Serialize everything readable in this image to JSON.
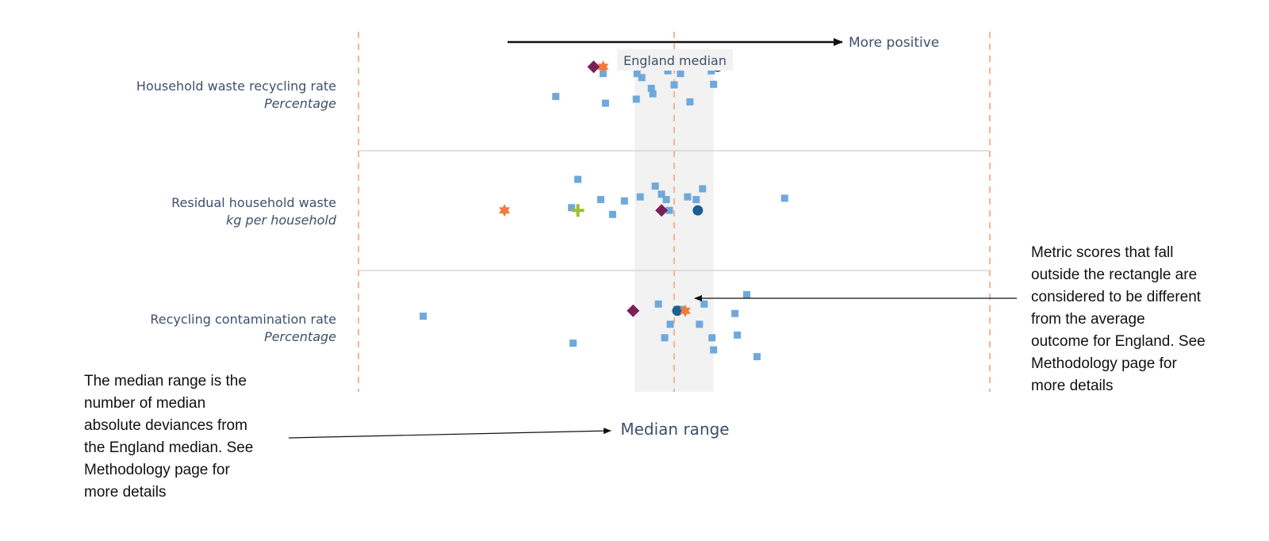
{
  "chart_data": {
    "type": "scatter",
    "x_axis_label": "Median range",
    "direction_label": "More positive",
    "median_label": "England median",
    "x_range": [
      -4,
      4
    ],
    "median_band": [
      -0.5,
      0.5
    ],
    "marker_colors": {
      "background": "#6fa8dc",
      "circle": "#1c5f91",
      "star": "#f07a3c",
      "diamond": "#7b1f5a",
      "plus": "#9cbf2a",
      "guide": "#f4a27a",
      "band": "#f2f2f2",
      "separator": "#d6d6d6"
    },
    "rows": [
      {
        "title": "Household waste recycling rate",
        "unit": "Percentage",
        "background_points": [
          {
            "x": -0.87,
            "y": -0.65
          },
          {
            "x": -0.9,
            "y": 0.45
          },
          {
            "x": -0.47,
            "y": 0.45
          },
          {
            "x": -0.41,
            "y": 0.3
          },
          {
            "x": -0.29,
            "y": -0.1
          },
          {
            "x": -0.27,
            "y": -0.3
          },
          {
            "x": -0.48,
            "y": -0.5
          },
          {
            "x": 0.0,
            "y": 0.03
          },
          {
            "x": -0.08,
            "y": 0.55
          },
          {
            "x": 0.08,
            "y": 0.45
          },
          {
            "x": 0.2,
            "y": -0.6
          },
          {
            "x": 0.47,
            "y": 0.55
          },
          {
            "x": 0.5,
            "y": 0.05
          },
          {
            "x": -1.5,
            "y": -0.4
          }
        ],
        "markers": [
          {
            "shape": "diamond",
            "x": -1.02,
            "y": 0.7
          },
          {
            "shape": "star",
            "x": -0.9,
            "y": 0.7
          },
          {
            "shape": "circle",
            "x": 0.55,
            "y": 0.7
          }
        ]
      },
      {
        "title": "Residual household waste",
        "unit": "kg per household",
        "background_points": [
          {
            "x": -1.22,
            "y": 0.85
          },
          {
            "x": -1.3,
            "y": -0.2
          },
          {
            "x": -0.93,
            "y": 0.1
          },
          {
            "x": -0.78,
            "y": -0.45
          },
          {
            "x": -0.63,
            "y": 0.05
          },
          {
            "x": -0.43,
            "y": 0.2
          },
          {
            "x": -0.24,
            "y": 0.6
          },
          {
            "x": -0.16,
            "y": 0.3
          },
          {
            "x": -0.1,
            "y": 0.1
          },
          {
            "x": 0.17,
            "y": 0.2
          },
          {
            "x": 0.28,
            "y": 0.1
          },
          {
            "x": 0.36,
            "y": 0.5
          },
          {
            "x": -0.06,
            "y": -0.3
          },
          {
            "x": 1.4,
            "y": 0.15
          }
        ],
        "markers": [
          {
            "shape": "star",
            "x": -2.15,
            "y": -0.3
          },
          {
            "shape": "plus",
            "x": -1.22,
            "y": -0.3
          },
          {
            "shape": "diamond",
            "x": -0.16,
            "y": -0.3
          },
          {
            "shape": "circle",
            "x": 0.3,
            "y": -0.3
          }
        ]
      },
      {
        "title": "Recycling contamination rate",
        "unit": "Percentage",
        "background_points": [
          {
            "x": -3.18,
            "y": 0.1
          },
          {
            "x": -1.28,
            "y": -0.9
          },
          {
            "x": -0.2,
            "y": 0.55
          },
          {
            "x": -0.05,
            "y": -0.2
          },
          {
            "x": -0.12,
            "y": -0.7
          },
          {
            "x": 0.08,
            "y": 0.35
          },
          {
            "x": 0.38,
            "y": 0.55
          },
          {
            "x": 0.32,
            "y": -0.2
          },
          {
            "x": 0.48,
            "y": -0.7
          },
          {
            "x": 0.77,
            "y": 0.2
          },
          {
            "x": 0.92,
            "y": 0.9
          },
          {
            "x": 0.8,
            "y": -0.6
          },
          {
            "x": 1.05,
            "y": -1.4
          },
          {
            "x": 0.5,
            "y": -1.15
          }
        ],
        "markers": [
          {
            "shape": "diamond",
            "x": -0.52,
            "y": 0.3
          },
          {
            "shape": "circle",
            "x": 0.04,
            "y": 0.3
          },
          {
            "shape": "star",
            "x": 0.14,
            "y": 0.3
          }
        ]
      }
    ]
  },
  "annotations": {
    "left_note": [
      "The median range is the",
      "number of median",
      "absolute deviances from",
      "the England median. See",
      "Methodology page for",
      "more details"
    ],
    "right_note": [
      "Metric scores that fall",
      "outside the rectangle are",
      "considered to be different",
      "from the average",
      "outcome for England. See",
      "Methodology page for",
      "more details"
    ]
  }
}
